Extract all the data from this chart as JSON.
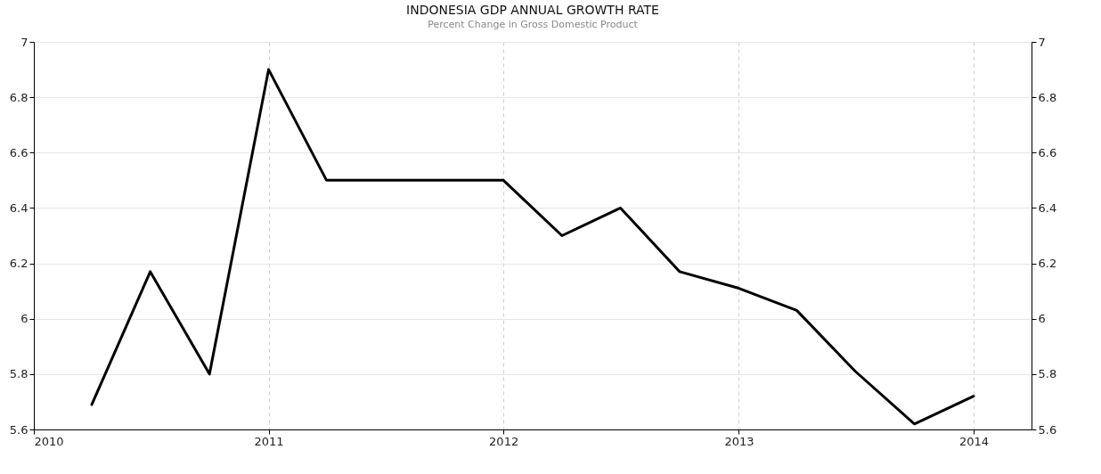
{
  "chart_data": {
    "type": "line",
    "title": "INDONESIA GDP ANNUAL GROWTH RATE",
    "subtitle": "Percent Change in Gross Domestic Product",
    "x": [
      "2010-04",
      "2010-07",
      "2010-10",
      "2011-01",
      "2011-04",
      "2011-07",
      "2011-10",
      "2012-01",
      "2012-04",
      "2012-07",
      "2012-10",
      "2013-01",
      "2013-04",
      "2013-07",
      "2013-10",
      "2014-01"
    ],
    "series": [
      {
        "color": "#000000",
        "values": [
          5.69,
          6.17,
          5.8,
          6.9,
          6.5,
          6.5,
          6.5,
          6.5,
          6.3,
          6.4,
          6.17,
          6.11,
          6.03,
          5.81,
          5.62,
          5.72
        ]
      }
    ],
    "xlim": [
      "2010-01",
      "2014-04"
    ],
    "xticks": [
      "2010",
      "2011",
      "2012",
      "2013",
      "2014"
    ],
    "ylim": [
      5.6,
      7
    ],
    "yticks": [
      5.6,
      5.8,
      6,
      6.2,
      6.4,
      6.6,
      6.8,
      7
    ],
    "y2lim": [
      5.6,
      7
    ],
    "y2ticks": [
      5.6,
      5.8,
      6,
      6.2,
      6.4,
      6.6,
      6.8,
      7
    ],
    "grid": true,
    "marker": "none",
    "line_style": "solid"
  }
}
